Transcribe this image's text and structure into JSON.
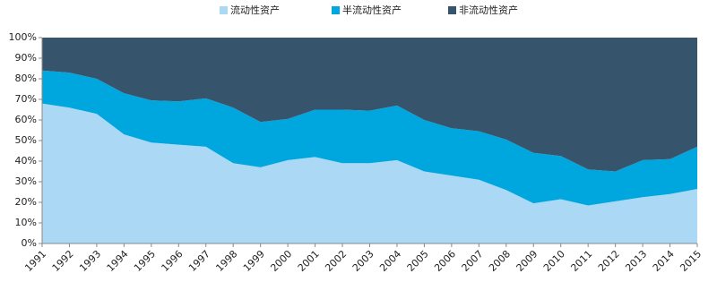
{
  "chart_data": {
    "type": "stacked_area",
    "categories": [
      "1991",
      "1992",
      "1993",
      "1994",
      "1995",
      "1996",
      "1997",
      "1998",
      "1999",
      "2000",
      "2001",
      "2002",
      "2003",
      "2004",
      "2005",
      "2006",
      "2007",
      "2008",
      "2009",
      "2010",
      "2011",
      "2012",
      "2013",
      "2014",
      "2015"
    ],
    "series": [
      {
        "name": "流动性资产",
        "color": "#aad8f5",
        "values": [
          68,
          66,
          63,
          53,
          49,
          48,
          47,
          39,
          37,
          40.5,
          42,
          39,
          39,
          40.5,
          35,
          33,
          31,
          26,
          19.5,
          21.5,
          18.5,
          20.5,
          22.5,
          24,
          26.5
        ]
      },
      {
        "name": "半流动性资产",
        "color": "#00a6de",
        "values": [
          16,
          17,
          17,
          20,
          20.5,
          21,
          23.5,
          27,
          22,
          20,
          23,
          26,
          25.5,
          26.5,
          25,
          23,
          23.5,
          24.5,
          24.5,
          21,
          17.5,
          14.5,
          18,
          17,
          20.5
        ]
      },
      {
        "name": "非流动性资产",
        "color": "#36546c",
        "values": [
          16,
          17,
          20,
          27,
          30.5,
          31,
          29.5,
          34,
          41,
          39.5,
          35,
          35,
          35.5,
          33,
          40,
          44,
          45.5,
          49.5,
          56,
          57.5,
          64,
          65,
          59.5,
          59,
          53
        ]
      }
    ],
    "ylim": [
      0,
      100
    ],
    "yticks": [
      {
        "value": 0,
        "label": "0%"
      },
      {
        "value": 10,
        "label": "10%"
      },
      {
        "value": 20,
        "label": "20%"
      },
      {
        "value": 30,
        "label": "30%"
      },
      {
        "value": 40,
        "label": "40%"
      },
      {
        "value": 50,
        "label": "50%"
      },
      {
        "value": 60,
        "label": "60%"
      },
      {
        "value": 70,
        "label": "70%"
      },
      {
        "value": 80,
        "label": "80%"
      },
      {
        "value": 90,
        "label": "90%"
      },
      {
        "value": 100,
        "label": "100%"
      }
    ],
    "legend": "top"
  }
}
